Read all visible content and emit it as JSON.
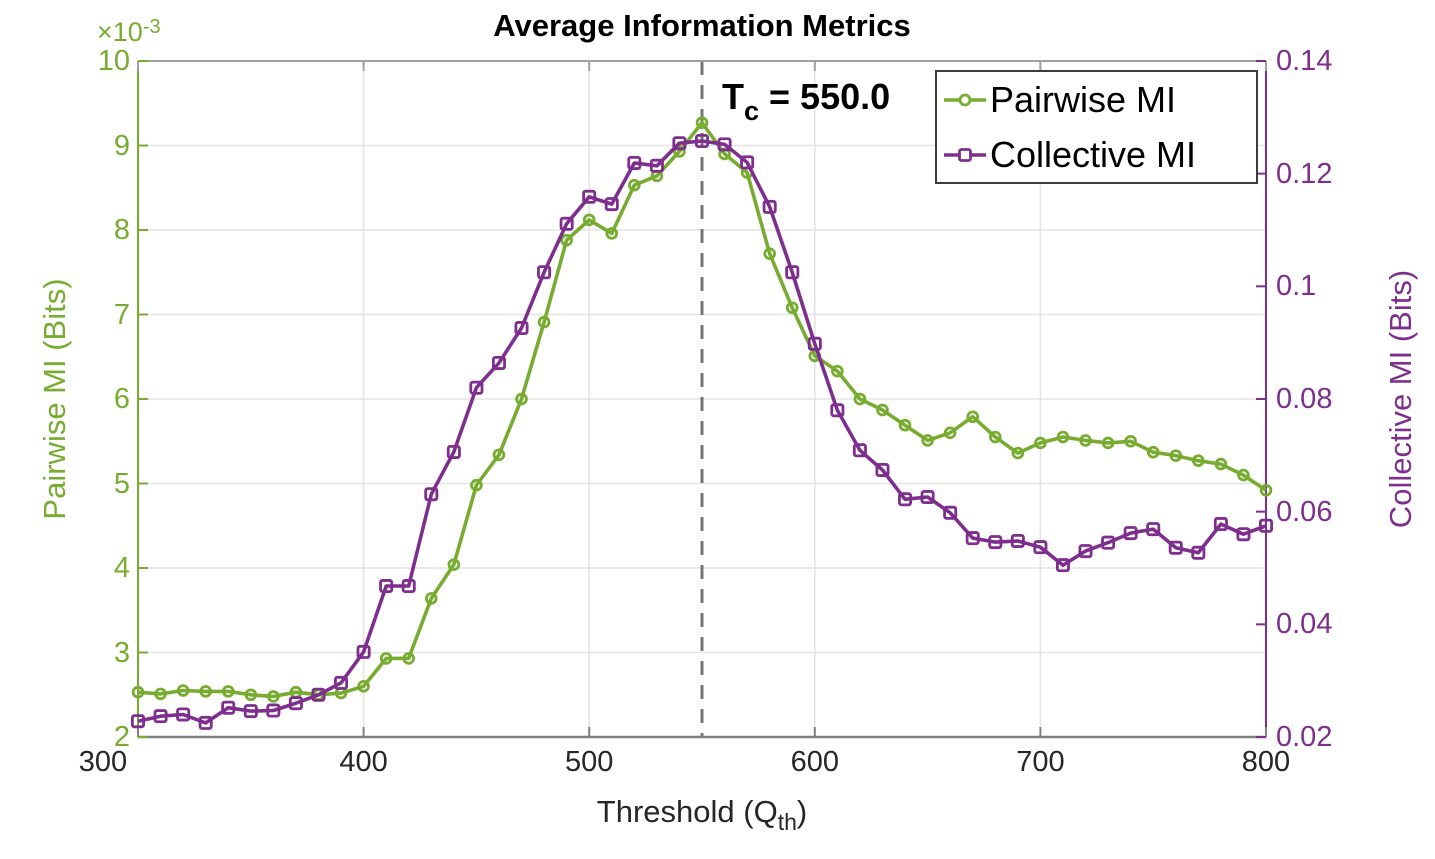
{
  "chart_data": {
    "type": "line",
    "title": "Average Information Metrics",
    "x_axis": {
      "label_prefix": "Threshold (Q",
      "label_sub": "th",
      "label_suffix": ")",
      "range": [
        300,
        800
      ],
      "tick_values": [
        300,
        400,
        500,
        600,
        700,
        800
      ],
      "tick_labels": [
        "300",
        "400",
        "500",
        "600",
        "700",
        "800"
      ],
      "color": "#262626"
    },
    "left_axis": {
      "label": "Pairwise MI (Bits)",
      "offset_prefix": "×10",
      "offset_exponent": "-3",
      "unit_note": "values shown in units of 1e-3 bits",
      "range": [
        2,
        10
      ],
      "tick_values": [
        2,
        3,
        4,
        5,
        6,
        7,
        8,
        9,
        10
      ],
      "tick_labels": [
        "2",
        "3",
        "4",
        "5",
        "6",
        "7",
        "8",
        "9",
        "10"
      ],
      "color": "#77AC30"
    },
    "right_axis": {
      "label": "Collective MI (Bits)",
      "range": [
        0.02,
        0.14
      ],
      "tick_values": [
        0.02,
        0.04,
        0.06,
        0.08,
        0.1,
        0.12,
        0.14
      ],
      "tick_labels": [
        "0.02",
        "0.04",
        "0.06",
        "0.08",
        "0.1",
        "0.12",
        "0.14"
      ],
      "color": "#7E2F8E"
    },
    "grid": true,
    "legend": {
      "position": "top-right",
      "items": [
        "Pairwise MI",
        "Collective MI"
      ]
    },
    "annotation": {
      "prefix": "T",
      "sub": "c",
      "rest": " = 550.0",
      "x": 550
    },
    "vline": {
      "x": 550,
      "color": "#757575",
      "style": "dashed"
    },
    "x": [
      300,
      310,
      320,
      330,
      340,
      350,
      360,
      370,
      380,
      390,
      400,
      410,
      420,
      430,
      440,
      450,
      460,
      470,
      480,
      490,
      500,
      510,
      520,
      530,
      540,
      550,
      560,
      570,
      580,
      590,
      600,
      610,
      620,
      630,
      640,
      650,
      660,
      670,
      680,
      690,
      700,
      710,
      720,
      730,
      740,
      750,
      760,
      770,
      780,
      790,
      800
    ],
    "series": [
      {
        "name": "Pairwise MI",
        "axis": "left",
        "color": "#77AC30",
        "marker": "circle",
        "values": [
          2.53,
          2.51,
          2.55,
          2.54,
          2.54,
          2.5,
          2.48,
          2.53,
          2.5,
          2.52,
          2.6,
          2.93,
          2.93,
          3.64,
          4.04,
          4.98,
          5.34,
          6.0,
          6.91,
          7.88,
          8.12,
          7.96,
          8.53,
          8.64,
          8.93,
          9.27,
          8.9,
          8.68,
          7.72,
          7.08,
          6.51,
          6.33,
          6.0,
          5.87,
          5.69,
          5.51,
          5.6,
          5.79,
          5.55,
          5.36,
          5.48,
          5.55,
          5.51,
          5.48,
          5.5,
          5.37,
          5.33,
          5.27,
          5.23,
          5.1,
          4.92
        ]
      },
      {
        "name": "Collective MI",
        "axis": "right",
        "color": "#7E2F8E",
        "marker": "square",
        "values": [
          0.0228,
          0.0237,
          0.024,
          0.0225,
          0.0252,
          0.0246,
          0.0247,
          0.026,
          0.0275,
          0.0296,
          0.0351,
          0.0468,
          0.0468,
          0.0631,
          0.0706,
          0.082,
          0.0864,
          0.0926,
          0.1025,
          0.1111,
          0.1159,
          0.1146,
          0.1219,
          0.1214,
          0.1254,
          0.1258,
          0.1252,
          0.122,
          0.1141,
          0.1025,
          0.0898,
          0.078,
          0.0709,
          0.0674,
          0.0622,
          0.0626,
          0.0598,
          0.0553,
          0.0546,
          0.0548,
          0.0537,
          0.0505,
          0.053,
          0.0545,
          0.0562,
          0.0569,
          0.0536,
          0.0527,
          0.0578,
          0.056,
          0.0575
        ]
      }
    ]
  }
}
